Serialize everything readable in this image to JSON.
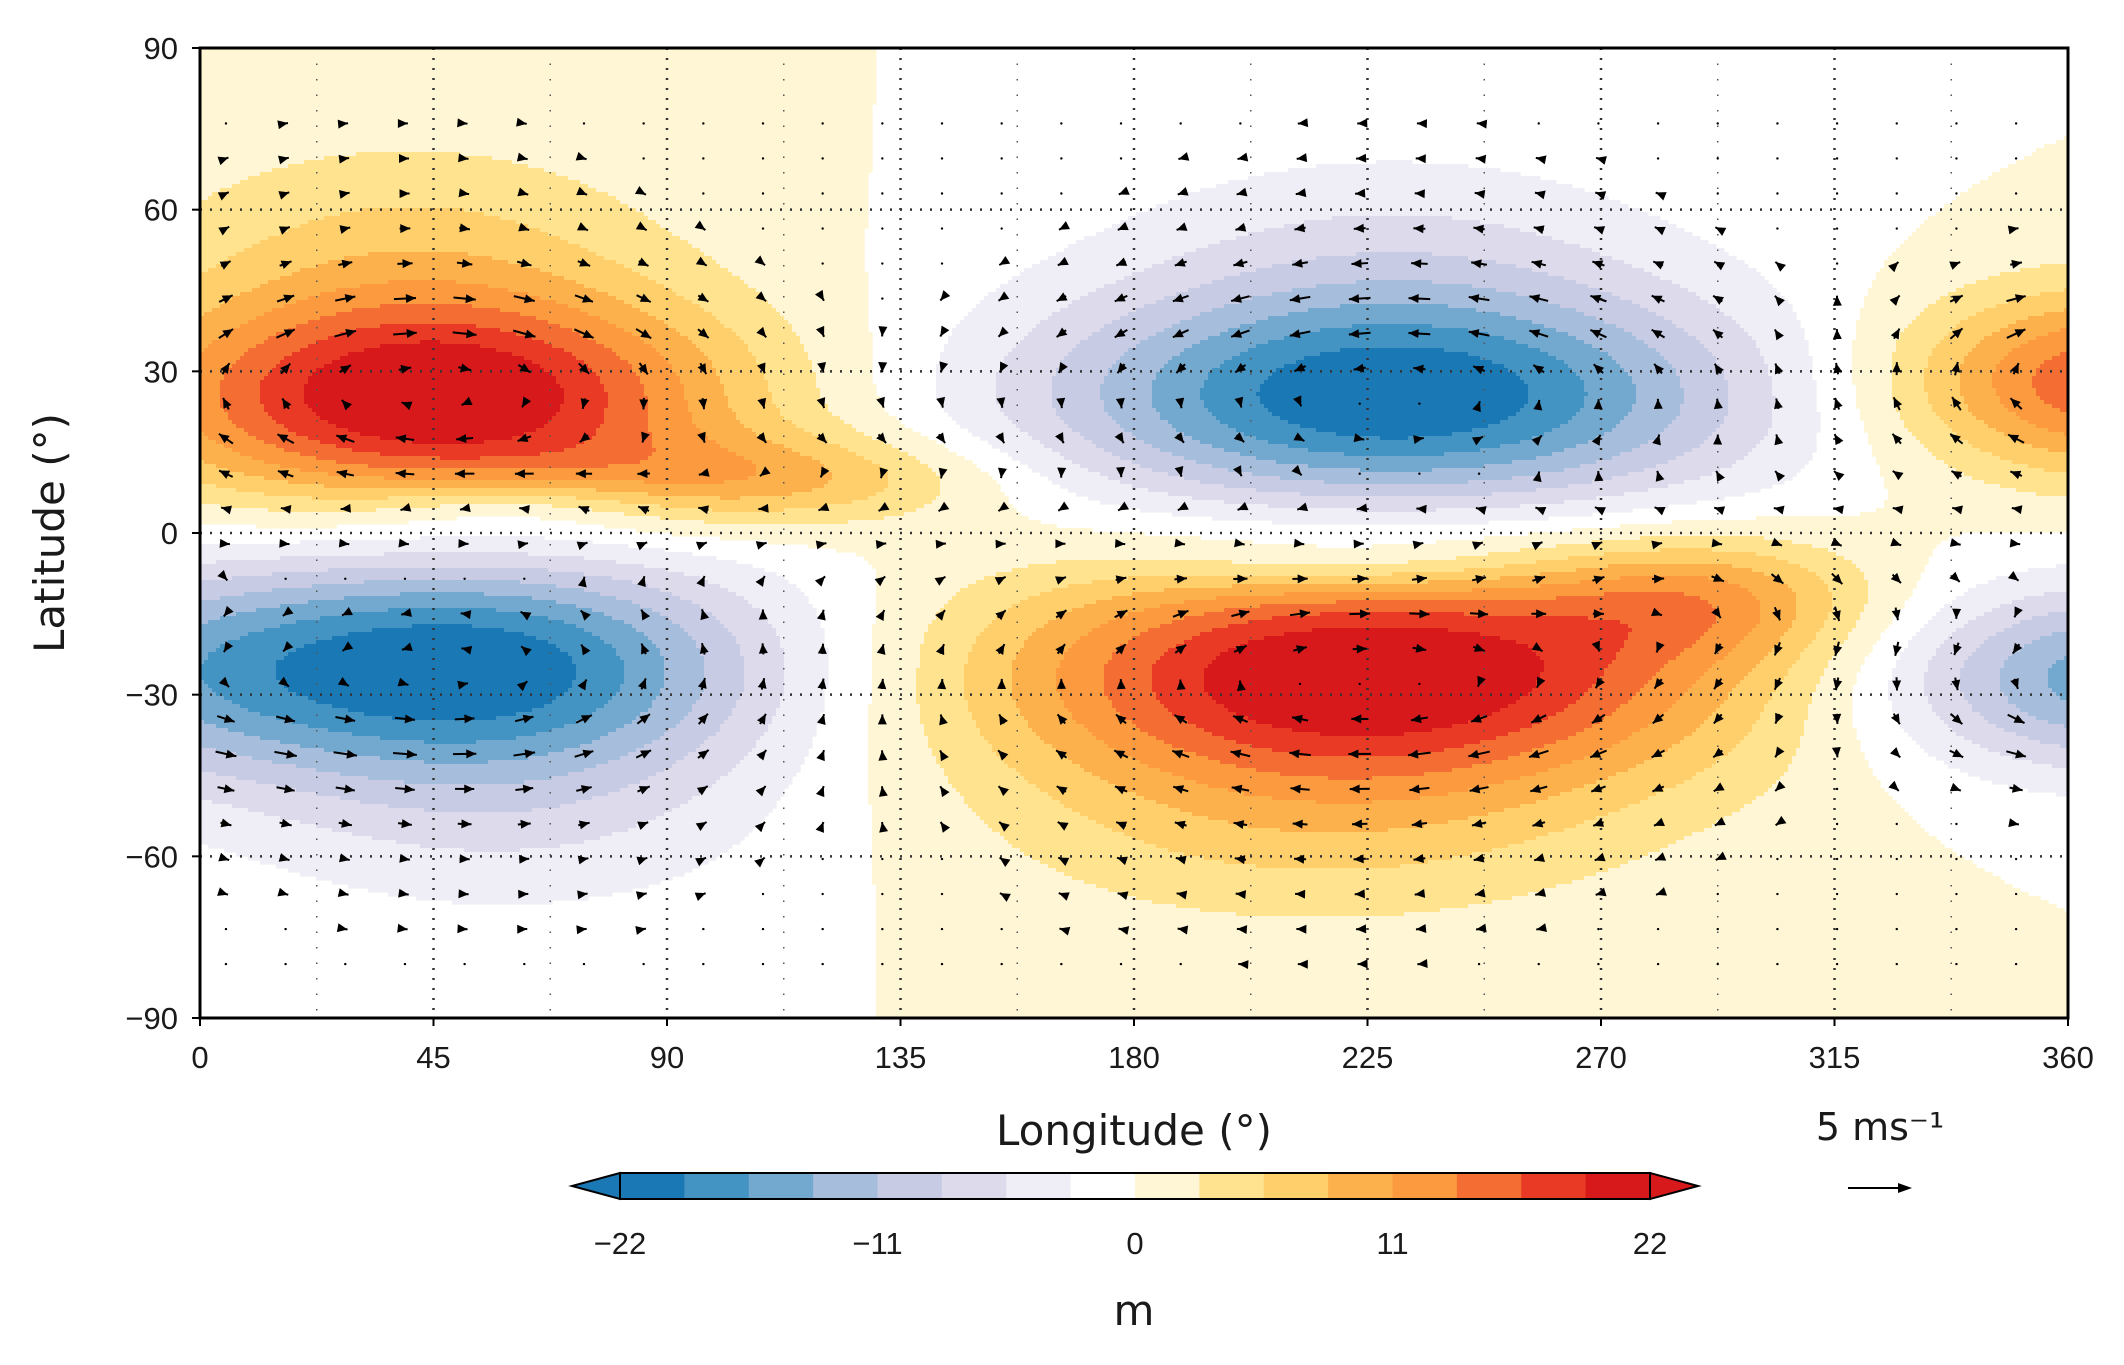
{
  "chart_data": {
    "type": "heatmap",
    "xlabel": "Longitude (°)",
    "ylabel": "Latitude (°)",
    "xlim": [
      0,
      360
    ],
    "ylim": [
      -90,
      90
    ],
    "xticks": [
      0,
      45,
      90,
      135,
      180,
      225,
      270,
      315,
      360
    ],
    "yticks": [
      90,
      60,
      30,
      0,
      -30,
      -60,
      -90
    ],
    "ytick_labels": [
      "90",
      "60",
      "30",
      "0",
      "−30",
      "−60",
      "−90"
    ],
    "grid": "dotted",
    "colorbar": {
      "label": "m",
      "ticks": [
        -22,
        -11,
        0,
        11,
        22
      ],
      "tick_labels": [
        "−22",
        "−11",
        "0",
        "11",
        "22"
      ],
      "levels": [
        -22,
        -19.25,
        -16.5,
        -13.75,
        -11,
        -8.25,
        -5.5,
        -2.75,
        0,
        2.75,
        5.5,
        8.25,
        11,
        13.75,
        16.5,
        19.25,
        22
      ],
      "colors": [
        "#1a78b5",
        "#4393c3",
        "#74a9cf",
        "#a6bddb",
        "#c7cbe3",
        "#dcdaeb",
        "#efedf5",
        "#ffffff",
        "#fff6d5",
        "#ffe38f",
        "#fecf6a",
        "#fdb14d",
        "#fc9a3f",
        "#f46d33",
        "#e83a25",
        "#d7191c"
      ],
      "extend": "both"
    },
    "field_extrema": [
      {
        "lon": 45,
        "lat": 25,
        "value": 22
      },
      {
        "lon": 230,
        "lat": 25,
        "value": -21
      },
      {
        "lon": 50,
        "lat": -25,
        "value": -21
      },
      {
        "lon": 225,
        "lat": -26,
        "value": 22
      },
      {
        "lon": 360,
        "lat": 28,
        "value": 15
      },
      {
        "lon": 360,
        "lat": -27,
        "value": -14
      }
    ],
    "quiver_key": {
      "label": "5 ms⁻¹",
      "magnitude": 5,
      "units": "m/s"
    }
  }
}
